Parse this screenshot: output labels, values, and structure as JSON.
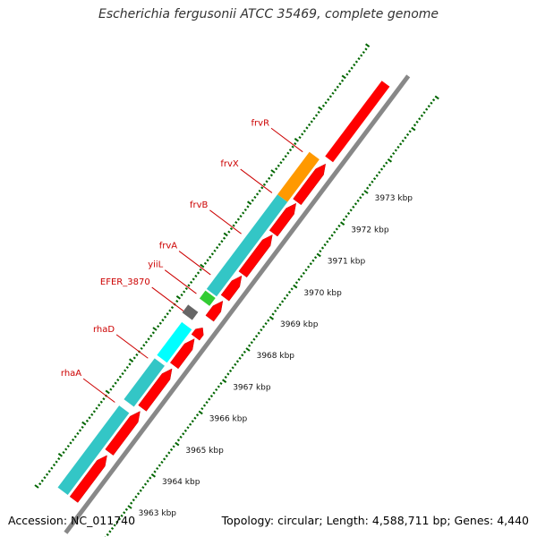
{
  "title": "Escherichia fergusonii ATCC 35469, complete genome",
  "accession": "Accession: NC_011740",
  "summary": "Topology: circular; Length: 4,588,711 bp; Genes: 4,440",
  "colors": {
    "cds": "#ff0000",
    "gene": "#33c6c6",
    "gene_bright": "#00ffff",
    "gene_orange": "#ff9900",
    "gene_green": "#33cc33",
    "gene_gray": "#666666",
    "tick": "#006600",
    "label": "#cc0000",
    "backbone": "#888888"
  },
  "gene_labels": [
    {
      "name": "frvR",
      "pos": 3972.85
    },
    {
      "name": "frvX",
      "pos": 3971.55
    },
    {
      "name": "frvB",
      "pos": 3970.25
    },
    {
      "name": "frvA",
      "pos": 3968.95
    },
    {
      "name": "yiiL",
      "pos": 3968.35
    },
    {
      "name": "EFER_3870",
      "pos": 3967.8
    },
    {
      "name": "rhaD",
      "pos": 3966.3
    },
    {
      "name": "rhaA",
      "pos": 3964.9
    }
  ],
  "kbp_ticks": [
    {
      "label": "3963 kbp",
      "pos": 3963
    },
    {
      "label": "3964 kbp",
      "pos": 3964
    },
    {
      "label": "3965 kbp",
      "pos": 3965
    },
    {
      "label": "3966 kbp",
      "pos": 3966
    },
    {
      "label": "3967 kbp",
      "pos": 3967
    },
    {
      "label": "3968 kbp",
      "pos": 3968
    },
    {
      "label": "3969 kbp",
      "pos": 3969
    },
    {
      "label": "3970 kbp",
      "pos": 3970
    },
    {
      "label": "3971 kbp",
      "pos": 3971
    },
    {
      "label": "3972 kbp",
      "pos": 3972
    },
    {
      "label": "3973 kbp",
      "pos": 3973
    }
  ],
  "gene_track": [
    {
      "start": 3962.3,
      "end": 3964.9,
      "color": "gene"
    },
    {
      "start": 3965.1,
      "end": 3966.4,
      "color": "gene"
    },
    {
      "start": 3966.5,
      "end": 3967.55,
      "color": "gene_bright"
    },
    {
      "start": 3968.3,
      "end": 3968.55,
      "color": "gene_green"
    },
    {
      "start": 3968.6,
      "end": 3971.6,
      "color": "gene"
    },
    {
      "start": 3971.6,
      "end": 3972.95,
      "color": "gene_orange"
    }
  ],
  "gene_gray": {
    "start": 3967.75,
    "end": 3968.0
  },
  "cds_track": [
    {
      "start": 3962.3,
      "end": 3963.7
    },
    {
      "start": 3963.8,
      "end": 3965.1
    },
    {
      "start": 3965.2,
      "end": 3966.45
    },
    {
      "start": 3966.55,
      "end": 3967.4
    },
    {
      "start": 3967.45,
      "end": 3967.75
    },
    {
      "start": 3968.05,
      "end": 3968.6
    },
    {
      "start": 3968.7,
      "end": 3969.4
    },
    {
      "start": 3969.45,
      "end": 3970.7
    },
    {
      "start": 3970.75,
      "end": 3971.7
    },
    {
      "start": 3971.75,
      "end": 3972.95
    },
    {
      "start": 3973.1,
      "end": 3975.5
    }
  ]
}
